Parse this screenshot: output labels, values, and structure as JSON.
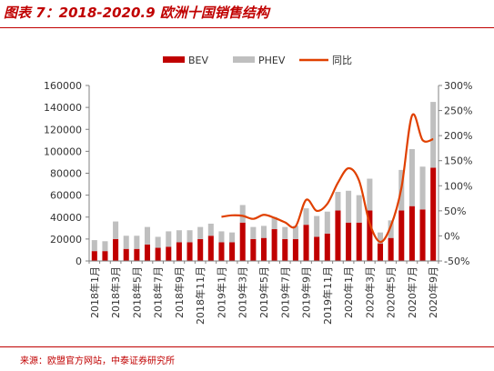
{
  "figure": {
    "title": "图表 7：2018-2020.9 欧洲十国销售结构",
    "source": "来源：欧盟官方网站，中泰证券研究所"
  },
  "chart_data": {
    "type": "bar",
    "stacked": true,
    "categories": [
      "2018年1月",
      "2018年2月",
      "2018年3月",
      "2018年4月",
      "2018年5月",
      "2018年6月",
      "2018年7月",
      "2018年8月",
      "2018年9月",
      "2018年10月",
      "2018年11月",
      "2018年12月",
      "2019年1月",
      "2019年2月",
      "2019年3月",
      "2019年4月",
      "2019年5月",
      "2019年6月",
      "2019年7月",
      "2019年8月",
      "2019年9月",
      "2019年10月",
      "2019年11月",
      "2019年12月",
      "2020年1月",
      "2020年2月",
      "2020年3月",
      "2020年4月",
      "2020年5月",
      "2020年6月",
      "2020年7月",
      "2020年8月",
      "2020年9月"
    ],
    "tick_labels": [
      "2018年1月",
      "2018年3月",
      "2018年5月",
      "2018年7月",
      "2018年9月",
      "2018年11月",
      "2019年1月",
      "2019年3月",
      "2019年5月",
      "2019年7月",
      "2019年9月",
      "2019年11月",
      "2020年1月",
      "2020年3月",
      "2020年5月",
      "2020年7月",
      "2020年9月"
    ],
    "series": [
      {
        "name": "BEV",
        "axis": "left",
        "color": "#c00000",
        "values": [
          9000,
          9000,
          20000,
          11000,
          11000,
          15000,
          12000,
          13000,
          17000,
          17000,
          20000,
          23000,
          17000,
          17000,
          35000,
          20000,
          21000,
          29000,
          20000,
          20000,
          33000,
          22000,
          25000,
          46000,
          35000,
          35000,
          46000,
          16000,
          21000,
          46000,
          50000,
          47000,
          85000
        ]
      },
      {
        "name": "PHEV",
        "axis": "left",
        "color": "#bfbfbf",
        "values": [
          10000,
          9000,
          16000,
          12000,
          12000,
          16000,
          10000,
          14000,
          11000,
          11000,
          11000,
          11000,
          10000,
          9000,
          16000,
          11000,
          11000,
          11000,
          11000,
          12000,
          15000,
          19000,
          20000,
          17000,
          29000,
          25000,
          29000,
          10000,
          16000,
          37000,
          52000,
          39000,
          60000
        ]
      },
      {
        "name": "同比",
        "axis": "right",
        "type": "line",
        "color": "#e04000",
        "values": [
          null,
          null,
          null,
          null,
          null,
          null,
          null,
          null,
          null,
          null,
          null,
          null,
          38,
          41,
          40,
          34,
          42,
          36,
          27,
          19,
          72,
          50,
          64,
          106,
          135,
          110,
          25,
          -12,
          20,
          96,
          240,
          191,
          193
        ]
      }
    ],
    "left_axis": {
      "min": 0,
      "max": 160000,
      "ticks": [
        0,
        20000,
        40000,
        60000,
        80000,
        100000,
        120000,
        140000,
        160000
      ],
      "tick_labels": [
        "0",
        "20000",
        "40000",
        "60000",
        "80000",
        "100000",
        "120000",
        "140000",
        "160000"
      ]
    },
    "right_axis": {
      "min": -50,
      "max": 300,
      "ticks": [
        -50,
        0,
        50,
        100,
        150,
        200,
        250,
        300
      ],
      "tick_labels": [
        "-50%",
        "0%",
        "50%",
        "100%",
        "150%",
        "200%",
        "250%",
        "300%"
      ]
    },
    "legend": {
      "placement": "top-center",
      "labels": [
        "BEV",
        "PHEV",
        "同比"
      ]
    },
    "grid": false
  }
}
